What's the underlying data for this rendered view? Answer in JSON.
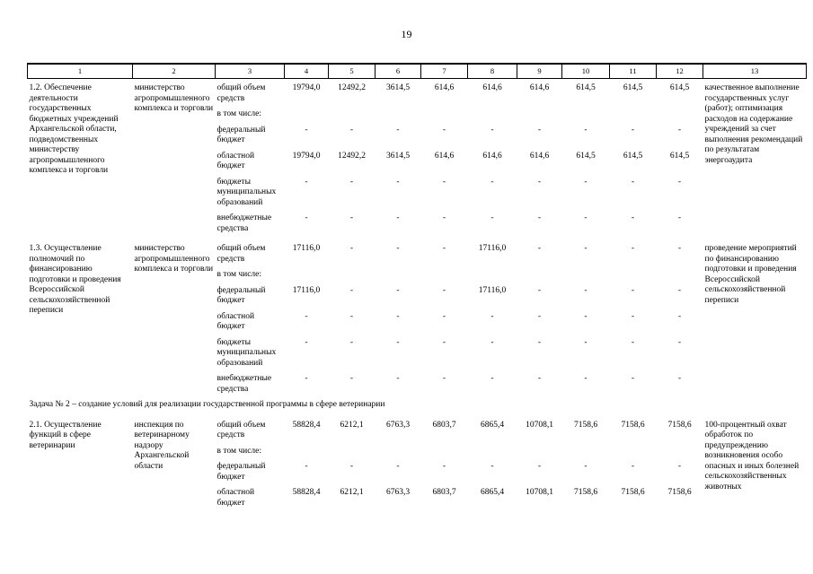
{
  "page": {
    "number": "19"
  },
  "table": {
    "header_cols": [
      "1",
      "2",
      "3",
      "4",
      "5",
      "6",
      "7",
      "8",
      "9",
      "10",
      "11",
      "12",
      "13"
    ],
    "rows": [
      {
        "name": "1.2. Обеспечение деятельности государственных бюджетных учреждений Архангельской области, подведомственных министерству агропромышленного комплекса и торговли",
        "executor": "министерство агропромышленного комплекса и торговли",
        "result": "качественное выполнение государственных услуг (работ); оптимизация расходов на содержание учреждений за счет выполнения рекомендаций по результатам энергоаудита",
        "funding": [
          {
            "label": "общий объем средств",
            "values": [
              "19794,0",
              "12492,2",
              "3614,5",
              "614,6",
              "614,6",
              "614,6",
              "614,5",
              "614,5",
              "614,5"
            ]
          },
          {
            "label": "в том числе:",
            "values": [
              "",
              "",
              "",
              "",
              "",
              "",
              "",
              "",
              ""
            ]
          },
          {
            "label": "федеральный бюджет",
            "values": [
              "-",
              "-",
              "-",
              "-",
              "-",
              "-",
              "-",
              "-",
              "-"
            ]
          },
          {
            "label": "областной бюджет",
            "values": [
              "19794,0",
              "12492,2",
              "3614,5",
              "614,6",
              "614,6",
              "614,6",
              "614,5",
              "614,5",
              "614,5"
            ]
          },
          {
            "label": "бюджеты муниципальных образований",
            "values": [
              "-",
              "-",
              "-",
              "-",
              "-",
              "-",
              "-",
              "-",
              "-"
            ]
          },
          {
            "label": "внебюджетные средства",
            "values": [
              "-",
              "-",
              "-",
              "-",
              "-",
              "-",
              "-",
              "-",
              "-"
            ]
          }
        ]
      },
      {
        "name": "1.3. Осуществление полномочий по финансированию подготовки и проведения Всероссийской сельскохозяйственной переписи",
        "executor": "министерство агропромышленного комплекса и торговли",
        "result": "проведение мероприятий по финансированию подготовки и проведения Всероссийской сельскохозяйственной переписи",
        "funding": [
          {
            "label": "общий объем средств",
            "values": [
              "17116,0",
              "-",
              "-",
              "-",
              "17116,0",
              "-",
              "-",
              "-",
              "-"
            ]
          },
          {
            "label": "в том числе:",
            "values": [
              "",
              "",
              "",
              "",
              "",
              "",
              "",
              "",
              ""
            ]
          },
          {
            "label": "федеральный бюджет",
            "values": [
              "17116,0",
              "-",
              "-",
              "-",
              "17116,0",
              "-",
              "-",
              "-",
              "-"
            ]
          },
          {
            "label": "областной бюджет",
            "values": [
              "-",
              "-",
              "-",
              "-",
              "-",
              "-",
              "-",
              "-",
              "-"
            ]
          },
          {
            "label": "бюджеты муниципальных образований",
            "values": [
              "-",
              "-",
              "-",
              "-",
              "-",
              "-",
              "-",
              "-",
              "-"
            ]
          },
          {
            "label": "внебюджетные средства",
            "values": [
              "-",
              "-",
              "-",
              "-",
              "-",
              "-",
              "-",
              "-",
              "-"
            ]
          }
        ]
      },
      {
        "section": "Задача № 2 – создание условий для реализации государственной программы в сфере ветеринарии"
      },
      {
        "name": "2.1. Осуществление функций в сфере ветеринарии",
        "executor": "инспекция по ветеринарному надзору Архангельской области",
        "result": "100-процентный охват обработок по предупреждению возникновения особо опасных и иных болезней сельскохозяйственных животных",
        "funding": [
          {
            "label": "общий объем средств",
            "values": [
              "58828,4",
              "6212,1",
              "6763,3",
              "6803,7",
              "6865,4",
              "10708,1",
              "7158,6",
              "7158,6",
              "7158,6"
            ]
          },
          {
            "label": "в том числе:",
            "values": [
              "",
              "",
              "",
              "",
              "",
              "",
              "",
              "",
              ""
            ]
          },
          {
            "label": "федеральный бюджет",
            "values": [
              "-",
              "-",
              "-",
              "-",
              "-",
              "-",
              "-",
              "-",
              "-"
            ]
          },
          {
            "label": "областной бюджет",
            "values": [
              "58828,4",
              "6212,1",
              "6763,3",
              "6803,7",
              "6865,4",
              "10708,1",
              "7158,6",
              "7158,6",
              "7158,6"
            ]
          }
        ]
      }
    ]
  }
}
